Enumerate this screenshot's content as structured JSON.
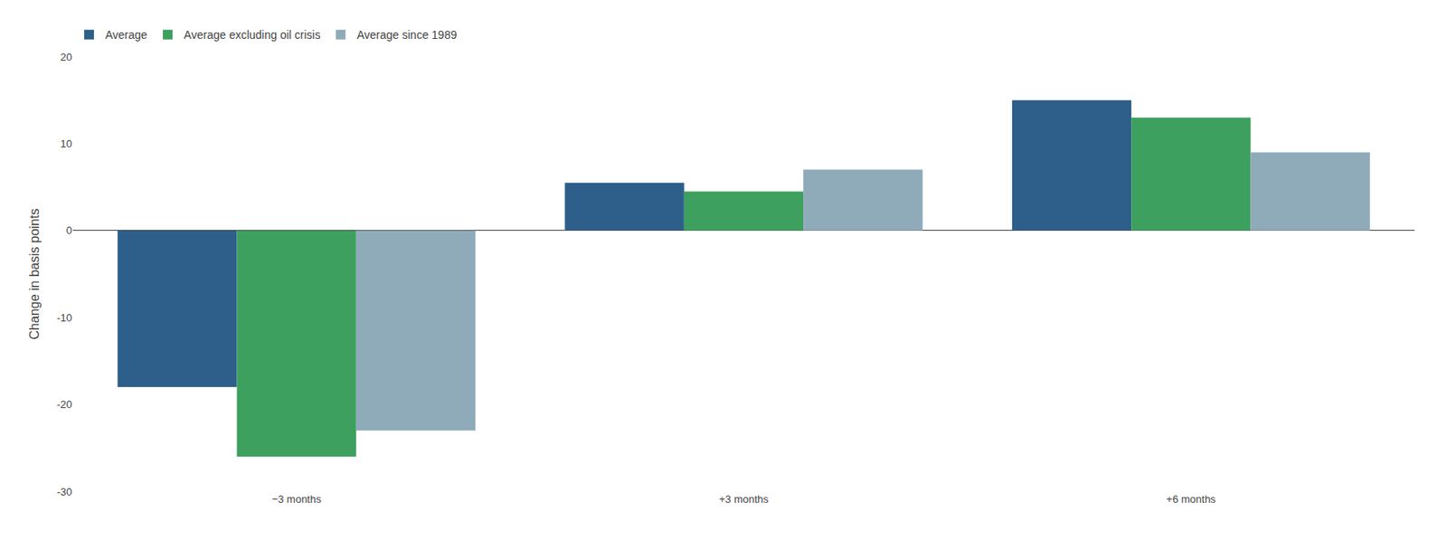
{
  "chart_data": {
    "type": "bar",
    "categories": [
      "−3 months",
      "+3 months",
      "+6 months"
    ],
    "series": [
      {
        "name": "Average",
        "color": "#2e5f8a",
        "values": [
          -18.0,
          5.5,
          15.0
        ]
      },
      {
        "name": "Average excluding oil crisis",
        "color": "#3da05e",
        "values": [
          -26.0,
          4.5,
          13.0
        ]
      },
      {
        "name": "Average since 1989",
        "color": "#8faab8",
        "values": [
          -23.0,
          7.0,
          9.0
        ]
      }
    ],
    "ylabel": "Change in basis points",
    "ylim": [
      -30,
      20
    ],
    "yticks": [
      -30,
      -20,
      -10,
      0,
      10,
      20
    ],
    "grid": false,
    "legend": "upper left"
  }
}
